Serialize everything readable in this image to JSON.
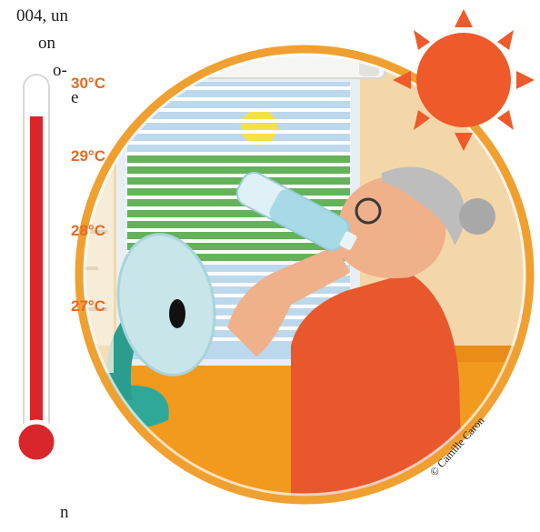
{
  "text_fragments": {
    "line1": "004, un",
    "line2": "on",
    "line3": "o-",
    "line4": "e",
    "line5": "n"
  },
  "illustration": {
    "thermometer_labels": [
      "30°C",
      "29°C",
      "28°C",
      "27°C"
    ],
    "credit": "© Camille Caron",
    "colors": {
      "ring": "#f0a030",
      "wall": "#f4d7a8",
      "floor": "#f29a1e",
      "sun": "#ee5a2a",
      "fan": "#2fa89a",
      "fan_blade": "#c8e6ea",
      "shirt": "#e9572d",
      "thermo_red": "#d8262a",
      "label_orange": "#e36b22"
    }
  }
}
